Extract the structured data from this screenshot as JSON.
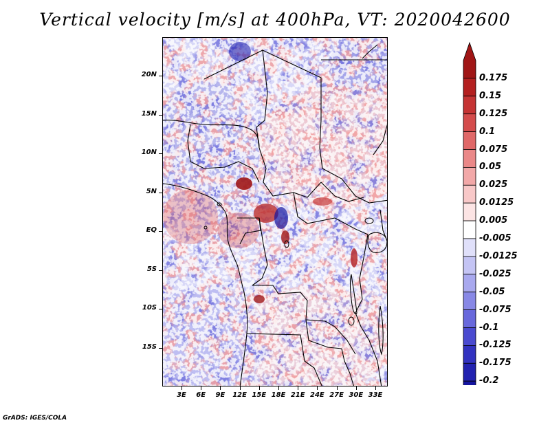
{
  "title": "Vertical velocity [m/s] at 400hPa, VT: 2020042600",
  "credit": "GrADS: IGES/COLA",
  "lat_labels": [
    "20N",
    "15N",
    "10N",
    "5N",
    "EQ",
    "5S",
    "10S",
    "15S"
  ],
  "lon_labels": [
    "3E",
    "6E",
    "9E",
    "12E",
    "15E",
    "18E",
    "21E",
    "24E",
    "27E",
    "30E",
    "33E"
  ],
  "colorbar": {
    "labels": [
      "0.175",
      "0.15",
      "0.125",
      "0.1",
      "0.075",
      "0.05",
      "0.025",
      "0.0125",
      "0.005",
      "-0.005",
      "-0.0125",
      "-0.025",
      "-0.05",
      "-0.075",
      "-0.1",
      "-0.125",
      "-0.175",
      "-0.2"
    ],
    "colors": [
      "#a01616",
      "#b42020",
      "#c53434",
      "#d44c4c",
      "#e06868",
      "#ea8888",
      "#f2a8a8",
      "#f8c8c8",
      "#fce4e4",
      "#ffffff",
      "#e0e0fa",
      "#c4c4f4",
      "#a8a8ee",
      "#8888e6",
      "#6868dc",
      "#4a4ad0",
      "#3232c0",
      "#2222b0",
      "#1414a0"
    ]
  },
  "colors": {
    "positive": "#c83232",
    "negative": "#3c3cc8",
    "neutral": "#ffffff"
  }
}
